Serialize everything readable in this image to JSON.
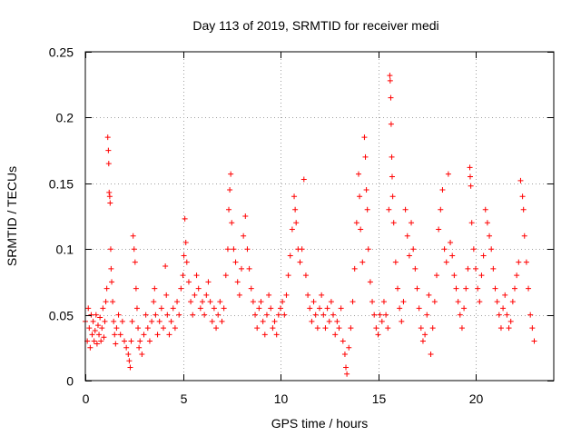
{
  "chart_data": {
    "type": "scatter",
    "title": "Day 113 of 2019, SRMTID for receiver medi",
    "xlabel": "GPS time / hours",
    "ylabel": "SRMTID / TECUs",
    "xlim": [
      0,
      24
    ],
    "ylim": [
      0,
      0.25
    ],
    "xticks": [
      0,
      5,
      10,
      15,
      20
    ],
    "xtick_labels": [
      "0",
      "5",
      "10",
      "15",
      "20"
    ],
    "yticks": [
      0,
      0.05,
      0.1,
      0.15,
      0.2,
      0.25
    ],
    "ytick_labels": [
      "0",
      "0.05",
      "0.1",
      "0.15",
      "0.2",
      "0.25"
    ],
    "grid": true,
    "marker": "+",
    "color": "#ff0000",
    "series": [
      {
        "name": "SRMTID",
        "points": [
          [
            0.0,
            0.045
          ],
          [
            0.1,
            0.03
          ],
          [
            0.15,
            0.055
          ],
          [
            0.2,
            0.04
          ],
          [
            0.25,
            0.025
          ],
          [
            0.3,
            0.05
          ],
          [
            0.35,
            0.035
          ],
          [
            0.4,
            0.045
          ],
          [
            0.45,
            0.03
          ],
          [
            0.5,
            0.038
          ],
          [
            0.55,
            0.05
          ],
          [
            0.6,
            0.028
          ],
          [
            0.65,
            0.042
          ],
          [
            0.7,
            0.035
          ],
          [
            0.75,
            0.048
          ],
          [
            0.8,
            0.03
          ],
          [
            0.85,
            0.04
          ],
          [
            0.9,
            0.055
          ],
          [
            0.95,
            0.033
          ],
          [
            1.0,
            0.045
          ],
          [
            1.05,
            0.06
          ],
          [
            1.1,
            0.07
          ],
          [
            1.15,
            0.185
          ],
          [
            1.18,
            0.175
          ],
          [
            1.2,
            0.165
          ],
          [
            1.22,
            0.143
          ],
          [
            1.25,
            0.14
          ],
          [
            1.27,
            0.135
          ],
          [
            1.3,
            0.1
          ],
          [
            1.32,
            0.085
          ],
          [
            1.35,
            0.075
          ],
          [
            1.4,
            0.06
          ],
          [
            1.45,
            0.045
          ],
          [
            1.5,
            0.035
          ],
          [
            1.55,
            0.028
          ],
          [
            1.6,
            0.04
          ],
          [
            1.7,
            0.05
          ],
          [
            1.8,
            0.035
          ],
          [
            1.9,
            0.045
          ],
          [
            2.0,
            0.03
          ],
          [
            2.1,
            0.025
          ],
          [
            2.2,
            0.02
          ],
          [
            2.25,
            0.015
          ],
          [
            2.3,
            0.01
          ],
          [
            2.35,
            0.03
          ],
          [
            2.4,
            0.045
          ],
          [
            2.45,
            0.11
          ],
          [
            2.5,
            0.1
          ],
          [
            2.55,
            0.09
          ],
          [
            2.6,
            0.07
          ],
          [
            2.65,
            0.055
          ],
          [
            2.7,
            0.04
          ],
          [
            2.75,
            0.025
          ],
          [
            2.8,
            0.03
          ],
          [
            2.9,
            0.02
          ],
          [
            3.0,
            0.035
          ],
          [
            3.1,
            0.05
          ],
          [
            3.2,
            0.04
          ],
          [
            3.3,
            0.03
          ],
          [
            3.4,
            0.045
          ],
          [
            3.5,
            0.06
          ],
          [
            3.55,
            0.07
          ],
          [
            3.6,
            0.05
          ],
          [
            3.7,
            0.035
          ],
          [
            3.8,
            0.045
          ],
          [
            3.9,
            0.055
          ],
          [
            4.0,
            0.04
          ],
          [
            4.1,
            0.087
          ],
          [
            4.15,
            0.065
          ],
          [
            4.2,
            0.05
          ],
          [
            4.3,
            0.035
          ],
          [
            4.4,
            0.045
          ],
          [
            4.5,
            0.055
          ],
          [
            4.6,
            0.04
          ],
          [
            4.7,
            0.06
          ],
          [
            4.8,
            0.05
          ],
          [
            4.9,
            0.07
          ],
          [
            5.0,
            0.08
          ],
          [
            5.05,
            0.095
          ],
          [
            5.1,
            0.123
          ],
          [
            5.15,
            0.105
          ],
          [
            5.2,
            0.09
          ],
          [
            5.3,
            0.075
          ],
          [
            5.4,
            0.06
          ],
          [
            5.5,
            0.05
          ],
          [
            5.6,
            0.065
          ],
          [
            5.7,
            0.08
          ],
          [
            5.8,
            0.07
          ],
          [
            5.9,
            0.055
          ],
          [
            6.0,
            0.06
          ],
          [
            6.1,
            0.05
          ],
          [
            6.2,
            0.065
          ],
          [
            6.3,
            0.075
          ],
          [
            6.4,
            0.06
          ],
          [
            6.5,
            0.045
          ],
          [
            6.6,
            0.055
          ],
          [
            6.7,
            0.04
          ],
          [
            6.8,
            0.05
          ],
          [
            6.9,
            0.06
          ],
          [
            7.0,
            0.045
          ],
          [
            7.1,
            0.055
          ],
          [
            7.2,
            0.08
          ],
          [
            7.3,
            0.1
          ],
          [
            7.35,
            0.13
          ],
          [
            7.4,
            0.145
          ],
          [
            7.45,
            0.157
          ],
          [
            7.5,
            0.12
          ],
          [
            7.6,
            0.1
          ],
          [
            7.7,
            0.09
          ],
          [
            7.8,
            0.075
          ],
          [
            7.9,
            0.065
          ],
          [
            8.0,
            0.085
          ],
          [
            8.1,
            0.11
          ],
          [
            8.2,
            0.125
          ],
          [
            8.3,
            0.1
          ],
          [
            8.4,
            0.085
          ],
          [
            8.5,
            0.07
          ],
          [
            8.6,
            0.06
          ],
          [
            8.7,
            0.05
          ],
          [
            8.8,
            0.04
          ],
          [
            8.9,
            0.055
          ],
          [
            9.0,
            0.06
          ],
          [
            9.1,
            0.045
          ],
          [
            9.2,
            0.035
          ],
          [
            9.3,
            0.05
          ],
          [
            9.4,
            0.065
          ],
          [
            9.5,
            0.055
          ],
          [
            9.6,
            0.04
          ],
          [
            9.7,
            0.045
          ],
          [
            9.8,
            0.035
          ],
          [
            9.9,
            0.05
          ],
          [
            10.0,
            0.055
          ],
          [
            10.1,
            0.06
          ],
          [
            10.2,
            0.05
          ],
          [
            10.3,
            0.065
          ],
          [
            10.4,
            0.08
          ],
          [
            10.5,
            0.095
          ],
          [
            10.6,
            0.115
          ],
          [
            10.7,
            0.14
          ],
          [
            10.75,
            0.13
          ],
          [
            10.8,
            0.12
          ],
          [
            10.9,
            0.1
          ],
          [
            11.0,
            0.09
          ],
          [
            11.1,
            0.1
          ],
          [
            11.2,
            0.153
          ],
          [
            11.3,
            0.08
          ],
          [
            11.4,
            0.065
          ],
          [
            11.5,
            0.055
          ],
          [
            11.6,
            0.045
          ],
          [
            11.7,
            0.06
          ],
          [
            11.8,
            0.05
          ],
          [
            11.9,
            0.04
          ],
          [
            12.0,
            0.055
          ],
          [
            12.1,
            0.065
          ],
          [
            12.2,
            0.05
          ],
          [
            12.3,
            0.04
          ],
          [
            12.4,
            0.055
          ],
          [
            12.5,
            0.045
          ],
          [
            12.6,
            0.06
          ],
          [
            12.7,
            0.05
          ],
          [
            12.8,
            0.035
          ],
          [
            12.9,
            0.045
          ],
          [
            13.0,
            0.04
          ],
          [
            13.1,
            0.055
          ],
          [
            13.2,
            0.03
          ],
          [
            13.3,
            0.02
          ],
          [
            13.35,
            0.01
          ],
          [
            13.4,
            0.005
          ],
          [
            13.5,
            0.025
          ],
          [
            13.6,
            0.04
          ],
          [
            13.7,
            0.06
          ],
          [
            13.8,
            0.085
          ],
          [
            13.9,
            0.12
          ],
          [
            14.0,
            0.157
          ],
          [
            14.05,
            0.14
          ],
          [
            14.1,
            0.115
          ],
          [
            14.2,
            0.09
          ],
          [
            14.3,
            0.185
          ],
          [
            14.35,
            0.17
          ],
          [
            14.4,
            0.145
          ],
          [
            14.45,
            0.13
          ],
          [
            14.5,
            0.1
          ],
          [
            14.6,
            0.075
          ],
          [
            14.7,
            0.06
          ],
          [
            14.8,
            0.05
          ],
          [
            14.9,
            0.04
          ],
          [
            15.0,
            0.035
          ],
          [
            15.1,
            0.05
          ],
          [
            15.2,
            0.045
          ],
          [
            15.3,
            0.06
          ],
          [
            15.4,
            0.05
          ],
          [
            15.5,
            0.04
          ],
          [
            15.55,
            0.13
          ],
          [
            15.6,
            0.232
          ],
          [
            15.62,
            0.228
          ],
          [
            15.65,
            0.215
          ],
          [
            15.67,
            0.195
          ],
          [
            15.7,
            0.17
          ],
          [
            15.72,
            0.155
          ],
          [
            15.75,
            0.14
          ],
          [
            15.8,
            0.12
          ],
          [
            15.9,
            0.09
          ],
          [
            16.0,
            0.07
          ],
          [
            16.1,
            0.055
          ],
          [
            16.2,
            0.045
          ],
          [
            16.3,
            0.06
          ],
          [
            16.4,
            0.13
          ],
          [
            16.5,
            0.11
          ],
          [
            16.6,
            0.095
          ],
          [
            16.7,
            0.12
          ],
          [
            16.8,
            0.1
          ],
          [
            16.9,
            0.085
          ],
          [
            17.0,
            0.07
          ],
          [
            17.1,
            0.055
          ],
          [
            17.2,
            0.04
          ],
          [
            17.3,
            0.03
          ],
          [
            17.4,
            0.035
          ],
          [
            17.5,
            0.05
          ],
          [
            17.6,
            0.065
          ],
          [
            17.7,
            0.02
          ],
          [
            17.8,
            0.04
          ],
          [
            17.9,
            0.06
          ],
          [
            18.0,
            0.08
          ],
          [
            18.1,
            0.115
          ],
          [
            18.2,
            0.13
          ],
          [
            18.3,
            0.145
          ],
          [
            18.4,
            0.1
          ],
          [
            18.5,
            0.09
          ],
          [
            18.6,
            0.157
          ],
          [
            18.7,
            0.105
          ],
          [
            18.8,
            0.095
          ],
          [
            18.9,
            0.08
          ],
          [
            19.0,
            0.07
          ],
          [
            19.1,
            0.06
          ],
          [
            19.2,
            0.05
          ],
          [
            19.3,
            0.04
          ],
          [
            19.4,
            0.055
          ],
          [
            19.5,
            0.07
          ],
          [
            19.6,
            0.085
          ],
          [
            19.7,
            0.162
          ],
          [
            19.72,
            0.155
          ],
          [
            19.75,
            0.148
          ],
          [
            19.8,
            0.12
          ],
          [
            19.9,
            0.1
          ],
          [
            20.0,
            0.085
          ],
          [
            20.1,
            0.07
          ],
          [
            20.2,
            0.06
          ],
          [
            20.3,
            0.08
          ],
          [
            20.4,
            0.095
          ],
          [
            20.5,
            0.13
          ],
          [
            20.6,
            0.12
          ],
          [
            20.7,
            0.11
          ],
          [
            20.8,
            0.1
          ],
          [
            20.9,
            0.085
          ],
          [
            21.0,
            0.07
          ],
          [
            21.1,
            0.06
          ],
          [
            21.2,
            0.05
          ],
          [
            21.3,
            0.04
          ],
          [
            21.4,
            0.055
          ],
          [
            21.5,
            0.065
          ],
          [
            21.6,
            0.05
          ],
          [
            21.7,
            0.04
          ],
          [
            21.8,
            0.045
          ],
          [
            21.9,
            0.06
          ],
          [
            22.0,
            0.07
          ],
          [
            22.1,
            0.08
          ],
          [
            22.2,
            0.09
          ],
          [
            22.3,
            0.152
          ],
          [
            22.4,
            0.14
          ],
          [
            22.45,
            0.13
          ],
          [
            22.5,
            0.11
          ],
          [
            22.6,
            0.09
          ],
          [
            22.7,
            0.07
          ],
          [
            22.8,
            0.05
          ],
          [
            22.9,
            0.04
          ],
          [
            23.0,
            0.03
          ]
        ]
      }
    ]
  }
}
